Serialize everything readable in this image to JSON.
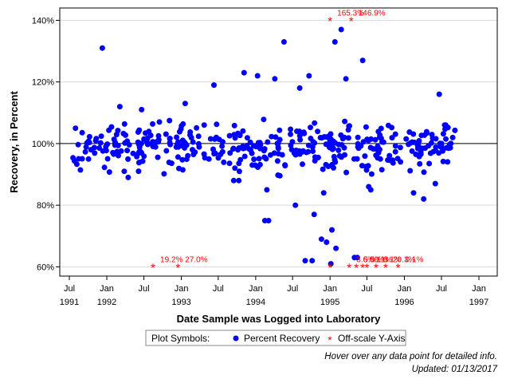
{
  "chart_data": {
    "type": "scatter",
    "title": "",
    "xlabel": "Date Sample was Logged into Laboratory",
    "ylabel": "Recovery, in Percent",
    "xlim": [
      "1991-05-15",
      "1997-04-01"
    ],
    "ylim": [
      57,
      144
    ],
    "y_ticks": [
      60,
      80,
      100,
      120,
      140
    ],
    "y_tick_format": "percent",
    "x_ticks": [
      {
        "date": "1991-07-01",
        "month": "Jul",
        "year": "1991"
      },
      {
        "date": "1992-01-01",
        "month": "Jan",
        "year": "1992"
      },
      {
        "date": "1992-07-01",
        "month": "Jul",
        "year": ""
      },
      {
        "date": "1993-01-01",
        "month": "Jan",
        "year": "1993"
      },
      {
        "date": "1993-07-01",
        "month": "Jul",
        "year": ""
      },
      {
        "date": "1994-01-01",
        "month": "Jan",
        "year": "1994"
      },
      {
        "date": "1994-07-01",
        "month": "Jul",
        "year": ""
      },
      {
        "date": "1995-01-01",
        "month": "Jan",
        "year": "1995"
      },
      {
        "date": "1995-07-01",
        "month": "Jul",
        "year": ""
      },
      {
        "date": "1996-01-01",
        "month": "Jan",
        "year": "1996"
      },
      {
        "date": "1996-07-01",
        "month": "Jul",
        "year": ""
      },
      {
        "date": "1997-01-01",
        "month": "Jan",
        "year": "1997"
      }
    ],
    "reference_line": 100,
    "grid": "horizontal",
    "series": [
      {
        "name": "Percent Recovery",
        "marker": "dot",
        "color": "#0000ff",
        "points": [
          [
            "1991-12-10",
            131
          ],
          [
            "1992-03-05",
            112
          ],
          [
            "1992-06-20",
            111
          ],
          [
            "1992-09-15",
            107
          ],
          [
            "1993-01-20",
            113
          ],
          [
            "1993-06-10",
            119
          ],
          [
            "1993-11-05",
            123
          ],
          [
            "1994-01-10",
            122
          ],
          [
            "1994-04-05",
            121
          ],
          [
            "1994-05-20",
            133
          ],
          [
            "1994-08-05",
            118
          ],
          [
            "1994-09-20",
            122
          ],
          [
            "1995-01-25",
            133
          ],
          [
            "1995-02-25",
            137
          ],
          [
            "1995-03-20",
            121
          ],
          [
            "1995-06-10",
            127
          ],
          [
            "1996-06-20",
            116
          ],
          [
            "1994-02-15",
            75
          ],
          [
            "1994-03-05",
            75
          ],
          [
            "1994-07-15",
            80
          ],
          [
            "1994-10-15",
            77
          ],
          [
            "1994-11-20",
            69
          ],
          [
            "1994-12-15",
            68
          ],
          [
            "1995-01-10",
            72
          ],
          [
            "1995-01-30",
            66
          ],
          [
            "1994-09-01",
            62
          ],
          [
            "1994-10-05",
            62
          ],
          [
            "1995-01-05",
            61
          ],
          [
            "1995-05-01",
            63
          ],
          [
            "1995-05-15",
            63
          ],
          [
            "1995-07-10",
            86
          ],
          [
            "1995-07-20",
            85
          ],
          [
            "1996-02-15",
            84
          ],
          [
            "1996-04-05",
            82
          ],
          [
            "1996-06-01",
            87
          ],
          [
            "1992-04-15",
            89
          ],
          [
            "1993-09-15",
            88
          ],
          [
            "1993-10-10",
            88
          ],
          [
            "1994-02-25",
            85
          ],
          [
            "1994-12-01",
            84
          ]
        ],
        "band": {
          "x_start": "1991-07-15",
          "x_end": "1996-09-15",
          "y_low": 88,
          "y_high": 110,
          "count": 400,
          "note": "dense cloud of additional points"
        }
      },
      {
        "name": "Off-scale Y-Axis",
        "marker": "asterisk",
        "color": "#ff0000",
        "points": [
          {
            "date": "1995-01-01",
            "y": 140,
            "label": "165.3%"
          },
          {
            "date": "1995-04-15",
            "y": 140,
            "label": "146.9%"
          },
          {
            "date": "1992-08-15",
            "y": 60,
            "label": "19.2%"
          },
          {
            "date": "1992-12-15",
            "y": 60,
            "label": "27.0%"
          },
          {
            "date": "1995-01-01",
            "y": 60,
            "label": ""
          },
          {
            "date": "1995-04-05",
            "y": 60,
            "label": "3.6%"
          },
          {
            "date": "1995-05-10",
            "y": 60,
            "label": "5.5%"
          },
          {
            "date": "1995-06-10",
            "y": 60,
            "label": "0.1%"
          },
          {
            "date": "1995-07-01",
            "y": 60,
            "label": "0.1%"
          },
          {
            "date": "1995-08-15",
            "y": 60,
            "label": "0.1%"
          },
          {
            "date": "1995-10-01",
            "y": 60,
            "label": "20.3%"
          },
          {
            "date": "1995-12-01",
            "y": 60,
            "label": "0.1%"
          }
        ]
      }
    ],
    "legend": {
      "position": "bottom",
      "title": "Plot Symbols:"
    }
  },
  "footer": {
    "hover_note": "Hover over any data point for detailed info.",
    "updated": "Updated: 01/13/2017"
  }
}
